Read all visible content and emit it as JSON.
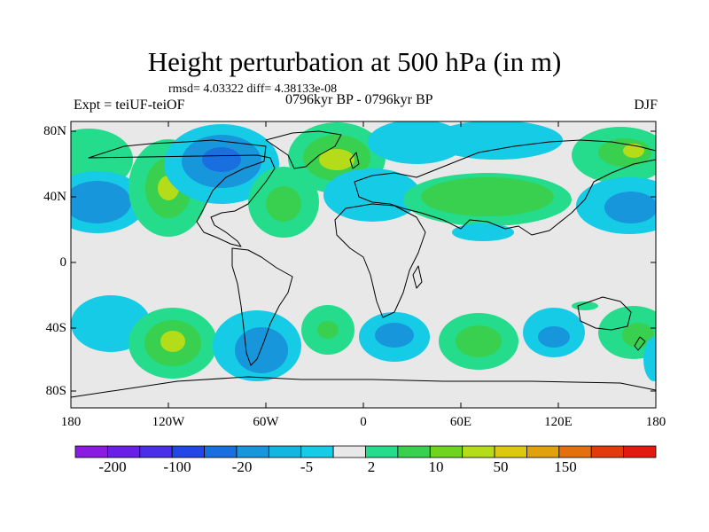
{
  "title": "Height perturbation at 500 hPa (in m)",
  "stats": "rmsd= 4.03322 diff= 4.38133e-08",
  "experiment": "Expt = teiUF-teiOF",
  "period": "0796kyr BP - 0796kyr BP",
  "season": "DJF",
  "map": {
    "lat_ticks": [
      "80N",
      "40N",
      "0",
      "40S",
      "80S"
    ],
    "lon_ticks": [
      "180",
      "120W",
      "60W",
      "0",
      "60E",
      "120E",
      "180"
    ]
  },
  "colorbar": {
    "labels": [
      "-200",
      "-100",
      "-20",
      "-5",
      "2",
      "10",
      "50",
      "150"
    ],
    "colors": [
      "#8a1be0",
      "#6a1fe6",
      "#4a2ee8",
      "#2347e6",
      "#1a6fe0",
      "#1896dc",
      "#11b7de",
      "#16cbe6",
      "#e8e8e8",
      "#25dc8c",
      "#38d04e",
      "#6fd420",
      "#b4dc18",
      "#dcc80e",
      "#e0a10a",
      "#e3700c",
      "#e33a0c",
      "#e01a10"
    ]
  },
  "colors": {
    "neutral": "#e8e8e8",
    "blue_light": "#16cbe6",
    "blue_mid": "#1896dc",
    "blue_dark": "#1a6fe0",
    "green_light": "#25dc8c",
    "green_mid": "#38d04e",
    "yellow_green": "#b4dc18"
  }
}
